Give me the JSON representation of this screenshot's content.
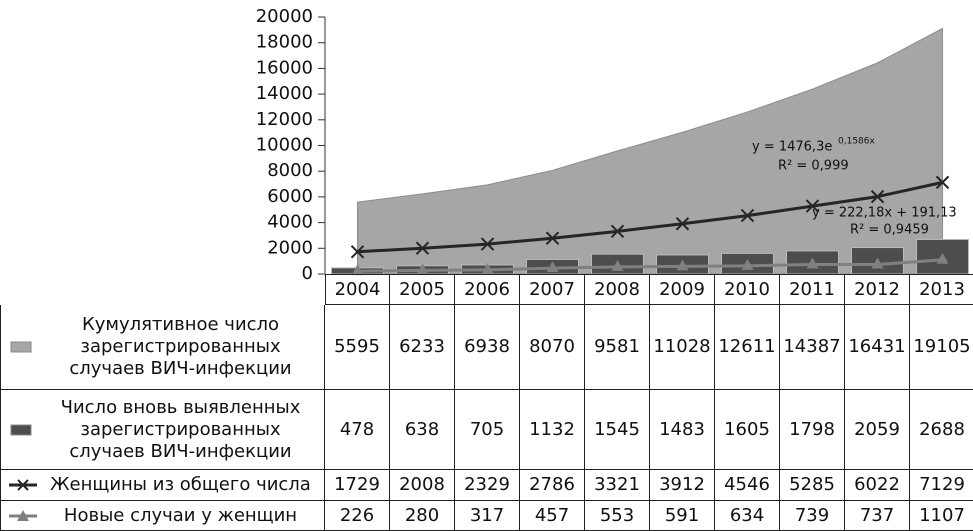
{
  "chart_data": {
    "type": "combo",
    "categories": [
      "2004",
      "2005",
      "2006",
      "2007",
      "2008",
      "2009",
      "2010",
      "2011",
      "2012",
      "2013"
    ],
    "series": [
      {
        "name": "Кумулятивное число зарегистрированных случаев ВИЧ-инфекции",
        "kind": "area",
        "color": "#a6a6a6",
        "values": [
          5595,
          6233,
          6938,
          8070,
          9581,
          11028,
          12611,
          14387,
          16431,
          19105
        ]
      },
      {
        "name": "Число вновь выявленных зарегистрированных случаев ВИЧ-инфекции",
        "kind": "bar",
        "color": "#4d4d4d",
        "values": [
          478,
          638,
          705,
          1132,
          1545,
          1483,
          1605,
          1798,
          2059,
          2688
        ]
      },
      {
        "name": "Женщины из общего числа",
        "kind": "line",
        "marker": "x",
        "color": "#262626",
        "values": [
          1729,
          2008,
          2329,
          2786,
          3321,
          3912,
          4546,
          5285,
          6022,
          7129
        ]
      },
      {
        "name": "Новые случаи у женщин",
        "kind": "line",
        "marker": "triangle",
        "color": "#808080",
        "values": [
          226,
          280,
          317,
          457,
          553,
          591,
          634,
          739,
          737,
          1107
        ]
      }
    ],
    "annotations": [
      "y = 1476,3e",
      "0,1586x",
      "R² = 0,999",
      "y = 222,18x + 191,13",
      "R² = 0,9459"
    ],
    "ylim": [
      0,
      20000
    ],
    "yticks": [
      0,
      2000,
      4000,
      6000,
      8000,
      10000,
      12000,
      14000,
      16000,
      18000,
      20000
    ]
  }
}
